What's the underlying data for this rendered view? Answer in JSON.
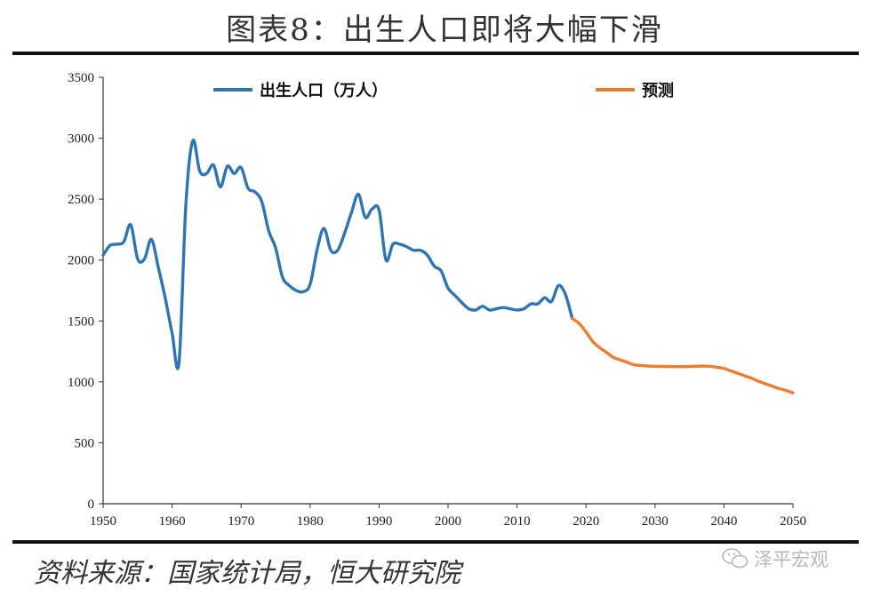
{
  "title": "图表8：出生人口即将大幅下滑",
  "source": "资料来源：国家统计局，恒大研究院",
  "watermark": {
    "text": "泽平宏观",
    "icon": "wechat-icon"
  },
  "colors": {
    "actual": "#2e75b6",
    "forecast": "#ed7d31",
    "axis": "#333333"
  },
  "chart_data": {
    "type": "line",
    "title": "",
    "xlabel": "",
    "ylabel": "",
    "xlim": [
      1950,
      2050
    ],
    "ylim": [
      0,
      3500
    ],
    "x_ticks": [
      1950,
      1960,
      1970,
      1980,
      1990,
      2000,
      2010,
      2020,
      2030,
      2040,
      2050
    ],
    "y_ticks": [
      0,
      500,
      1000,
      1500,
      2000,
      2500,
      3000,
      3500
    ],
    "grid": false,
    "legend_position": "top",
    "series": [
      {
        "name": "出生人口（万人）",
        "color": "#2e75b6",
        "x": [
          1950,
          1951,
          1952,
          1953,
          1954,
          1955,
          1956,
          1957,
          1958,
          1959,
          1960,
          1961,
          1962,
          1963,
          1964,
          1965,
          1966,
          1967,
          1968,
          1969,
          1970,
          1971,
          1972,
          1973,
          1974,
          1975,
          1976,
          1977,
          1978,
          1979,
          1980,
          1981,
          1982,
          1983,
          1984,
          1985,
          1986,
          1987,
          1988,
          1989,
          1990,
          1991,
          1992,
          1993,
          1994,
          1995,
          1996,
          1997,
          1998,
          1999,
          2000,
          2001,
          2002,
          2003,
          2004,
          2005,
          2006,
          2007,
          2008,
          2009,
          2010,
          2011,
          2012,
          2013,
          2014,
          2015,
          2016,
          2017,
          2018
        ],
        "values": [
          2040,
          2120,
          2130,
          2150,
          2290,
          2010,
          2010,
          2170,
          1940,
          1690,
          1400,
          1160,
          2460,
          2980,
          2730,
          2710,
          2780,
          2600,
          2770,
          2710,
          2760,
          2590,
          2560,
          2480,
          2240,
          2100,
          1860,
          1790,
          1750,
          1740,
          1800,
          2080,
          2260,
          2080,
          2080,
          2220,
          2390,
          2540,
          2350,
          2420,
          2410,
          2000,
          2130,
          2130,
          2110,
          2080,
          2080,
          2040,
          1950,
          1910,
          1770,
          1710,
          1650,
          1600,
          1590,
          1620,
          1590,
          1600,
          1610,
          1600,
          1590,
          1600,
          1640,
          1640,
          1690,
          1660,
          1790,
          1720,
          1520
        ]
      },
      {
        "name": "预测",
        "color": "#ed7d31",
        "x": [
          2018,
          2019,
          2020,
          2021,
          2022,
          2023,
          2024,
          2025,
          2026,
          2027,
          2028,
          2029,
          2030,
          2031,
          2032,
          2033,
          2034,
          2035,
          2036,
          2037,
          2038,
          2039,
          2040,
          2041,
          2042,
          2043,
          2044,
          2045,
          2046,
          2047,
          2048,
          2049,
          2050
        ],
        "values": [
          1520,
          1480,
          1410,
          1330,
          1280,
          1240,
          1200,
          1180,
          1160,
          1140,
          1135,
          1130,
          1128,
          1127,
          1126,
          1125,
          1125,
          1126,
          1128,
          1130,
          1128,
          1120,
          1110,
          1090,
          1070,
          1050,
          1030,
          1005,
          985,
          965,
          945,
          930,
          910
        ]
      }
    ]
  }
}
